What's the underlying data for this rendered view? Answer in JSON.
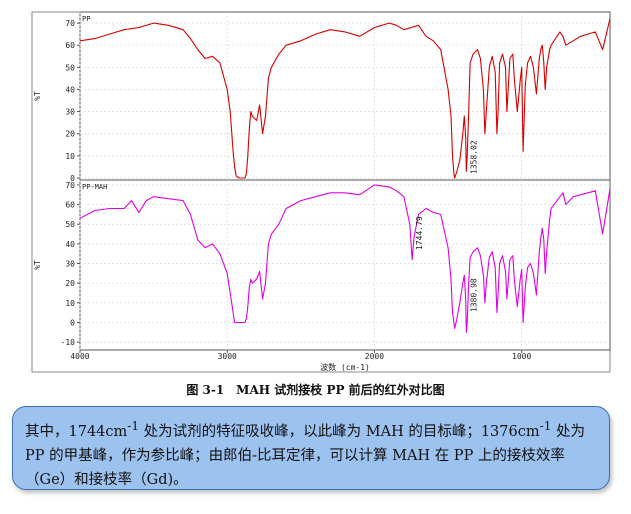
{
  "chart_data": [
    {
      "type": "line",
      "title": "PP",
      "ylabel": "%T",
      "xlabel": "波数 (cm-1)",
      "xlim": [
        4000,
        400
      ],
      "ylim": [
        0,
        75
      ],
      "yticks": [
        0,
        10,
        20,
        30,
        40,
        50,
        60,
        70
      ],
      "xticks": [
        4000,
        3000,
        2000,
        1000
      ],
      "color": "#d40000",
      "annotations": [
        {
          "x": 1376,
          "label": "1358.02"
        }
      ],
      "series": [
        {
          "x": [
            4000,
            3900,
            3800,
            3700,
            3600,
            3500,
            3400,
            3300,
            3250,
            3200,
            3150,
            3100,
            3050,
            3000,
            2980,
            2960,
            2950,
            2940,
            2920,
            2900,
            2880,
            2870,
            2860,
            2850,
            2840,
            2830,
            2800,
            2780,
            2760,
            2740,
            2720,
            2700,
            2650,
            2600,
            2500,
            2400,
            2300,
            2200,
            2100,
            2000,
            1900,
            1850,
            1800,
            1750,
            1700,
            1650,
            1600,
            1550,
            1500,
            1480,
            1470,
            1460,
            1455,
            1440,
            1420,
            1400,
            1390,
            1380,
            1376,
            1370,
            1360,
            1350,
            1330,
            1300,
            1280,
            1260,
            1250,
            1240,
            1220,
            1200,
            1180,
            1168,
            1160,
            1150,
            1130,
            1110,
            1100,
            1080,
            1060,
            1050,
            1030,
            1010,
            1000,
            990,
            975,
            960,
            940,
            920,
            900,
            880,
            870,
            860,
            850,
            840,
            830,
            810,
            800,
            780,
            760,
            740,
            720,
            700,
            650,
            600,
            550,
            500,
            450,
            400
          ],
          "y": [
            62,
            63,
            65,
            67,
            68,
            70,
            69,
            67,
            63,
            58,
            54,
            55,
            52,
            40,
            30,
            12,
            5,
            1,
            0,
            0,
            0,
            2,
            10,
            22,
            30,
            28,
            26,
            33,
            20,
            28,
            45,
            50,
            56,
            60,
            62,
            65,
            67,
            66,
            64,
            68,
            70,
            69,
            67,
            68,
            69,
            64,
            62,
            58,
            40,
            28,
            10,
            2,
            0,
            3,
            8,
            20,
            28,
            18,
            3,
            10,
            30,
            52,
            56,
            58,
            54,
            40,
            20,
            30,
            50,
            55,
            48,
            20,
            30,
            52,
            56,
            50,
            30,
            54,
            56,
            45,
            30,
            44,
            50,
            12,
            42,
            52,
            55,
            50,
            38,
            54,
            58,
            60,
            52,
            40,
            50,
            58,
            60,
            62,
            64,
            66,
            64,
            60,
            62,
            64,
            65,
            66,
            58,
            72
          ]
        }
      ]
    },
    {
      "type": "line",
      "title": "PP-MAH",
      "ylabel": "%T",
      "xlabel": "波数 (cm-1)",
      "xlim": [
        4000,
        400
      ],
      "ylim": [
        -13,
        72
      ],
      "yticks": [
        -10,
        0,
        10,
        20,
        30,
        40,
        50,
        60,
        70
      ],
      "xticks": [
        4000,
        3000,
        2000,
        1000
      ],
      "color": "#e000e0",
      "annotations": [
        {
          "x": 1744,
          "label": "1744.79"
        },
        {
          "x": 1376,
          "label": "1380.98"
        }
      ],
      "series": [
        {
          "x": [
            4000,
            3900,
            3800,
            3700,
            3650,
            3600,
            3550,
            3500,
            3400,
            3300,
            3250,
            3200,
            3150,
            3100,
            3050,
            3000,
            2980,
            2960,
            2950,
            2940,
            2920,
            2900,
            2880,
            2870,
            2860,
            2850,
            2840,
            2830,
            2800,
            2780,
            2760,
            2740,
            2720,
            2700,
            2650,
            2600,
            2500,
            2400,
            2300,
            2200,
            2100,
            2000,
            1900,
            1850,
            1800,
            1760,
            1744,
            1730,
            1700,
            1650,
            1600,
            1550,
            1500,
            1480,
            1470,
            1460,
            1455,
            1440,
            1420,
            1400,
            1390,
            1380,
            1376,
            1370,
            1360,
            1350,
            1330,
            1300,
            1280,
            1260,
            1250,
            1240,
            1220,
            1200,
            1180,
            1168,
            1160,
            1150,
            1130,
            1110,
            1100,
            1080,
            1060,
            1050,
            1030,
            1010,
            1000,
            990,
            975,
            960,
            940,
            920,
            900,
            880,
            870,
            860,
            850,
            840,
            830,
            810,
            800,
            780,
            760,
            740,
            720,
            700,
            650,
            600,
            550,
            500,
            450,
            400
          ],
          "y": [
            53,
            57,
            58,
            58,
            62,
            56,
            62,
            64,
            63,
            62,
            55,
            42,
            38,
            40,
            35,
            25,
            15,
            5,
            0,
            0,
            0,
            0,
            0,
            2,
            8,
            18,
            22,
            20,
            22,
            26,
            12,
            20,
            40,
            45,
            50,
            58,
            62,
            64,
            66,
            66,
            65,
            70,
            69,
            67,
            64,
            50,
            32,
            44,
            55,
            58,
            56,
            55,
            38,
            22,
            5,
            0,
            -3,
            2,
            10,
            20,
            24,
            12,
            -5,
            0,
            20,
            33,
            36,
            38,
            34,
            24,
            10,
            20,
            33,
            36,
            28,
            5,
            15,
            30,
            34,
            26,
            12,
            32,
            34,
            22,
            8,
            22,
            27,
            0,
            18,
            28,
            30,
            25,
            14,
            36,
            43,
            48,
            42,
            25,
            36,
            52,
            58,
            60,
            62,
            64,
            66,
            60,
            64,
            65,
            66,
            67,
            45,
            68
          ]
        }
      ]
    }
  ],
  "caption": {
    "fig": "图 3-1",
    "text": "MAH 试剂接枝 PP 前后的红外对比图"
  },
  "note": {
    "t1": "其中，1744cm",
    "s1": "-1",
    "t2": " 处为试剂的特征吸收峰，以此峰为 MAH 的目标峰；1376cm",
    "s2": "-1",
    "t3": " 处为 PP 的甲基峰，作为参比峰；由郎伯-比耳定律，可以计算 MAH 在 PP 上的接枝效率（Ge）和接枝率（Gd)。"
  }
}
